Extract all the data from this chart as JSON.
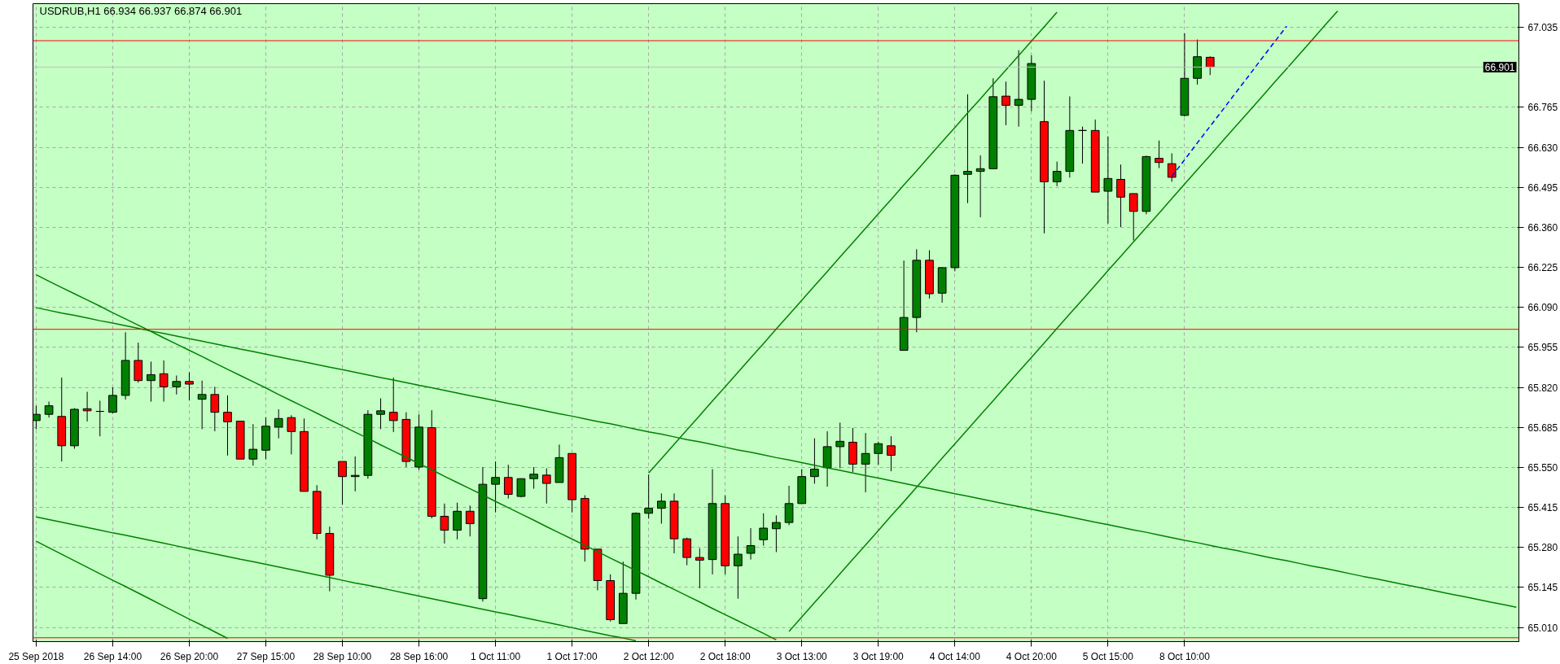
{
  "chart_data": {
    "type": "candlestick",
    "title": "USDRUB,H1  66.934 66.937 66.874 66.901",
    "categories": [
      "25 Sep 2018",
      null,
      null,
      null,
      null,
      null,
      "26 Sep 14:00",
      null,
      null,
      null,
      null,
      null,
      "26 Sep 20:00",
      null,
      null,
      null,
      null,
      null,
      "27 Sep 15:00",
      null,
      null,
      null,
      null,
      null,
      "28 Sep 10:00",
      null,
      null,
      null,
      null,
      null,
      "28 Sep 16:00",
      null,
      null,
      null,
      null,
      null,
      "1 Oct 11:00",
      null,
      null,
      null,
      null,
      null,
      "1 Oct 17:00",
      null,
      null,
      null,
      null,
      null,
      "2 Oct 12:00",
      null,
      null,
      null,
      null,
      null,
      "2 Oct 18:00",
      null,
      null,
      null,
      null,
      null,
      "3 Oct 13:00",
      null,
      null,
      null,
      null,
      null,
      "3 Oct 19:00",
      null,
      null,
      null,
      null,
      null,
      "4 Oct 14:00",
      null,
      null,
      null,
      null,
      null,
      "4 Oct 20:00",
      null,
      null,
      null,
      null,
      null,
      "5 Oct 15:00",
      null,
      null,
      null,
      null,
      null,
      "8 Oct 10:00",
      null,
      null,
      null,
      null,
      null,
      null,
      null,
      null,
      null,
      null,
      null,
      null,
      null,
      null,
      null,
      null,
      null,
      null,
      null,
      null,
      null,
      null,
      null,
      null,
      null,
      null
    ],
    "ohlc": [
      [
        65.708,
        65.758,
        65.679,
        65.729
      ],
      [
        65.729,
        65.772,
        65.718,
        65.758
      ],
      [
        65.722,
        65.853,
        65.57,
        65.623
      ],
      [
        65.623,
        65.75,
        65.613,
        65.746
      ],
      [
        65.748,
        65.805,
        65.705,
        65.741
      ],
      [
        65.739,
        65.775,
        65.655,
        65.739
      ],
      [
        65.736,
        65.82,
        65.732,
        65.793
      ],
      [
        65.793,
        66.006,
        65.779,
        65.911
      ],
      [
        65.911,
        65.971,
        65.836,
        65.843
      ],
      [
        65.843,
        65.907,
        65.772,
        65.863
      ],
      [
        65.866,
        65.911,
        65.772,
        65.822
      ],
      [
        65.822,
        65.86,
        65.796,
        65.84
      ],
      [
        65.84,
        65.871,
        65.776,
        65.831
      ],
      [
        65.78,
        65.843,
        65.679,
        65.796
      ],
      [
        65.796,
        65.822,
        65.672,
        65.736
      ],
      [
        65.736,
        65.793,
        65.59,
        65.704
      ],
      [
        65.706,
        65.706,
        65.578,
        65.578
      ],
      [
        65.578,
        65.696,
        65.556,
        65.611
      ],
      [
        65.608,
        65.719,
        65.577,
        65.689
      ],
      [
        65.686,
        65.746,
        65.648,
        65.715
      ],
      [
        65.718,
        65.726,
        65.594,
        65.671
      ],
      [
        65.671,
        65.715,
        65.469,
        65.469
      ],
      [
        65.469,
        65.49,
        65.307,
        65.327
      ],
      [
        65.327,
        65.35,
        65.132,
        65.186
      ],
      [
        65.57,
        65.57,
        65.424,
        65.519
      ],
      [
        65.519,
        65.587,
        65.469,
        65.523
      ],
      [
        65.523,
        65.743,
        65.512,
        65.729
      ],
      [
        65.729,
        65.783,
        65.679,
        65.741
      ],
      [
        65.736,
        65.853,
        65.669,
        65.708
      ],
      [
        65.712,
        65.736,
        65.551,
        65.57
      ],
      [
        65.551,
        65.729,
        65.542,
        65.686
      ],
      [
        65.684,
        65.743,
        65.378,
        65.385
      ],
      [
        65.385,
        65.428,
        65.293,
        65.338
      ],
      [
        65.338,
        65.431,
        65.307,
        65.402
      ],
      [
        65.402,
        65.421,
        65.317,
        65.36
      ],
      [
        65.107,
        65.551,
        65.097,
        65.493
      ],
      [
        65.493,
        65.57,
        65.398,
        65.516
      ],
      [
        65.516,
        65.559,
        65.445,
        65.459
      ],
      [
        65.452,
        65.512,
        65.449,
        65.512
      ],
      [
        65.512,
        65.551,
        65.478,
        65.527
      ],
      [
        65.524,
        65.547,
        65.428,
        65.496
      ],
      [
        65.499,
        65.627,
        65.499,
        65.583
      ],
      [
        65.597,
        65.597,
        65.398,
        65.441
      ],
      [
        65.445,
        65.456,
        65.232,
        65.274
      ],
      [
        65.274,
        65.274,
        65.135,
        65.168
      ],
      [
        65.168,
        65.189,
        65.03,
        65.036
      ],
      [
        65.023,
        65.232,
        65.023,
        65.125
      ],
      [
        65.125,
        65.398,
        65.104,
        65.395
      ],
      [
        65.395,
        65.526,
        65.377,
        65.412
      ],
      [
        65.412,
        65.462,
        65.36,
        65.436
      ],
      [
        65.436,
        65.462,
        65.26,
        65.309
      ],
      [
        65.309,
        65.313,
        65.22,
        65.246
      ],
      [
        65.246,
        65.277,
        65.142,
        65.237
      ],
      [
        65.239,
        65.544,
        65.189,
        65.428
      ],
      [
        65.428,
        65.456,
        65.189,
        65.218
      ],
      [
        65.218,
        65.317,
        65.107,
        65.257
      ],
      [
        65.26,
        65.345,
        65.239,
        65.286
      ],
      [
        65.306,
        65.395,
        65.286,
        65.345
      ],
      [
        65.343,
        65.388,
        65.264,
        65.364
      ],
      [
        65.364,
        65.488,
        65.355,
        65.428
      ],
      [
        65.428,
        65.544,
        65.428,
        65.519
      ],
      [
        65.519,
        65.648,
        65.495,
        65.544
      ],
      [
        65.549,
        65.672,
        65.485,
        65.62
      ],
      [
        65.62,
        65.701,
        65.547,
        65.638
      ],
      [
        65.635,
        65.683,
        65.534,
        65.561
      ],
      [
        65.561,
        65.666,
        65.466,
        65.597
      ],
      [
        65.597,
        65.637,
        65.559,
        65.63
      ],
      [
        65.623,
        65.655,
        65.537,
        65.591
      ],
      [
        65.945,
        66.248,
        65.945,
        66.056
      ],
      [
        66.056,
        66.286,
        66.006,
        66.249
      ],
      [
        66.249,
        66.283,
        66.12,
        66.136
      ],
      [
        66.138,
        66.226,
        66.106,
        66.224
      ],
      [
        66.224,
        66.539,
        66.212,
        66.536
      ],
      [
        66.539,
        66.809,
        66.442,
        66.549
      ],
      [
        66.549,
        66.603,
        66.394,
        66.558
      ],
      [
        66.558,
        66.863,
        66.558,
        66.801
      ],
      [
        66.803,
        66.852,
        66.705,
        66.772
      ],
      [
        66.772,
        66.958,
        66.7,
        66.792
      ],
      [
        66.792,
        66.941,
        66.752,
        66.913
      ],
      [
        66.717,
        66.855,
        66.34,
        66.514
      ],
      [
        66.514,
        66.582,
        66.499,
        66.549
      ],
      [
        66.549,
        66.802,
        66.528,
        66.687
      ],
      [
        66.687,
        66.7,
        66.575,
        66.687
      ],
      [
        66.687,
        66.724,
        66.479,
        66.479
      ],
      [
        66.482,
        66.667,
        66.373,
        66.525
      ],
      [
        66.522,
        66.572,
        66.361,
        66.462
      ],
      [
        66.474,
        66.474,
        66.316,
        66.414
      ],
      [
        66.414,
        66.602,
        66.404,
        66.599
      ],
      [
        66.593,
        66.653,
        66.56,
        66.579
      ],
      [
        66.575,
        66.61,
        66.514,
        66.529
      ],
      [
        66.738,
        67.015,
        66.734,
        66.863
      ],
      [
        66.863,
        66.994,
        66.842,
        66.936
      ],
      [
        66.934,
        66.937,
        66.874,
        66.901
      ],
      null,
      null,
      null,
      null,
      null,
      null,
      null,
      null,
      null,
      null,
      null,
      null,
      null,
      null,
      null,
      null,
      null,
      null,
      null,
      null,
      null,
      null,
      null,
      null
    ],
    "colors": [
      "#008000",
      "#008000",
      "#ff0000",
      "#008000",
      "#ff0000",
      "#000000",
      "#008000",
      "#008000",
      "#ff0000",
      "#008000",
      "#ff0000",
      "#008000",
      "#ff0000",
      "#008000",
      "#ff0000",
      "#ff0000",
      "#ff0000",
      "#008000",
      "#008000",
      "#008000",
      "#ff0000",
      "#ff0000",
      "#ff0000",
      "#ff0000",
      "#ff0000",
      "#008000",
      "#008000",
      "#008000",
      "#ff0000",
      "#ff0000",
      "#008000",
      "#ff0000",
      "#ff0000",
      "#008000",
      "#ff0000",
      "#008000",
      "#008000",
      "#ff0000",
      "#008000",
      "#008000",
      "#ff0000",
      "#008000",
      "#ff0000",
      "#ff0000",
      "#ff0000",
      "#ff0000",
      "#008000",
      "#008000",
      "#008000",
      "#008000",
      "#ff0000",
      "#ff0000",
      "#ff0000",
      "#008000",
      "#ff0000",
      "#008000",
      "#008000",
      "#008000",
      "#008000",
      "#008000",
      "#008000",
      "#008000",
      "#008000",
      "#008000",
      "#ff0000",
      "#008000",
      "#008000",
      "#ff0000",
      "#008000",
      "#008000",
      "#ff0000",
      "#008000",
      "#008000",
      "#008000",
      "#008000",
      "#008000",
      "#ff0000",
      "#008000",
      "#008000",
      "#ff0000",
      "#008000",
      "#008000",
      "#000000",
      "#ff0000",
      "#008000",
      "#ff0000",
      "#ff0000",
      "#008000",
      "#ff0000",
      "#ff0000",
      "#008000",
      "#008000",
      "#ff0000",
      null,
      null,
      null,
      null,
      null,
      null,
      null,
      null,
      null,
      null,
      null,
      null,
      null,
      null,
      null,
      null,
      null,
      null,
      null,
      null,
      null,
      null,
      null,
      null
    ],
    "series": [
      {
        "type": "line",
        "color": "#008000",
        "line_style": "solid",
        "values": [
          null,
          null,
          null,
          null,
          null,
          null,
          null,
          null,
          null,
          null,
          null,
          null,
          null,
          null,
          null,
          null,
          null,
          null,
          null,
          null,
          null,
          null,
          null,
          null,
          null,
          null,
          null,
          null,
          null,
          null,
          null,
          null,
          null,
          null,
          null,
          null,
          null,
          null,
          null,
          null,
          null,
          null,
          null,
          null,
          null,
          null,
          null,
          null,
          65.531,
          65.579,
          65.628,
          65.677,
          65.725,
          65.774,
          65.822,
          65.871,
          65.92,
          65.968,
          66.017,
          66.065,
          66.114,
          66.163,
          66.211,
          66.26,
          66.308,
          66.357,
          66.406,
          66.454,
          66.503,
          66.551,
          66.6,
          66.649,
          66.697,
          66.746,
          66.794,
          66.843,
          66.891,
          66.94,
          66.989,
          67.037,
          67.086,
          null,
          null,
          null,
          null,
          null,
          null,
          null,
          null,
          null,
          null,
          null,
          null,
          null,
          null,
          null,
          null,
          null,
          null,
          null,
          null,
          null,
          null,
          null,
          null,
          null,
          null,
          null,
          null,
          null,
          null,
          null,
          null,
          null,
          null,
          null,
          null
        ]
      },
      {
        "type": "line",
        "color": "#008000",
        "line_style": "solid",
        "values": [
          null,
          null,
          null,
          null,
          null,
          null,
          null,
          null,
          null,
          null,
          null,
          null,
          null,
          null,
          null,
          null,
          null,
          null,
          null,
          null,
          null,
          null,
          null,
          null,
          null,
          null,
          null,
          null,
          null,
          null,
          null,
          null,
          null,
          null,
          null,
          null,
          null,
          null,
          null,
          null,
          null,
          null,
          null,
          null,
          null,
          null,
          null,
          null,
          null,
          null,
          null,
          null,
          null,
          null,
          null,
          null,
          null,
          null,
          null,
          64.996,
          65.045,
          65.094,
          65.142,
          65.191,
          65.24,
          65.288,
          65.337,
          65.386,
          65.434,
          65.483,
          65.532,
          65.581,
          65.629,
          65.678,
          65.727,
          65.775,
          65.824,
          65.873,
          65.921,
          65.97,
          66.019,
          66.068,
          66.116,
          66.165,
          66.214,
          66.262,
          66.311,
          66.36,
          66.408,
          66.457,
          66.506,
          66.555,
          66.603,
          66.652,
          66.701,
          66.749,
          66.798,
          66.847,
          66.895,
          66.944,
          66.993,
          67.042,
          67.09,
          null,
          null,
          null,
          null,
          null,
          null,
          null,
          null,
          null,
          null,
          null,
          null,
          null,
          null
        ]
      },
      {
        "type": "line",
        "color": "#0000ff",
        "line_style": "dashed",
        "values": [
          null,
          null,
          null,
          null,
          null,
          null,
          null,
          null,
          null,
          null,
          null,
          null,
          null,
          null,
          null,
          null,
          null,
          null,
          null,
          null,
          null,
          null,
          null,
          null,
          null,
          null,
          null,
          null,
          null,
          null,
          null,
          null,
          null,
          null,
          null,
          null,
          null,
          null,
          null,
          null,
          null,
          null,
          null,
          null,
          null,
          null,
          null,
          null,
          null,
          null,
          null,
          null,
          null,
          null,
          null,
          null,
          null,
          null,
          null,
          null,
          null,
          null,
          null,
          null,
          null,
          null,
          null,
          null,
          null,
          null,
          null,
          null,
          null,
          null,
          null,
          null,
          null,
          null,
          null,
          null,
          null,
          null,
          null,
          null,
          null,
          null,
          null,
          null,
          null,
          66.532,
          66.588,
          66.645,
          66.701,
          66.757,
          66.814,
          66.87,
          66.927,
          66.983,
          67.039,
          null,
          null,
          null,
          null,
          null,
          null,
          null,
          null,
          null,
          null,
          null,
          null,
          null,
          null,
          null,
          null,
          null,
          null
        ]
      },
      {
        "type": "line",
        "color": "#008000",
        "line_style": "solid",
        "values": [
          66.089,
          66.08,
          66.071,
          66.063,
          66.054,
          66.045,
          66.037,
          66.028,
          66.019,
          66.01,
          66.002,
          65.993,
          65.984,
          65.976,
          65.967,
          65.958,
          65.949,
          65.941,
          65.932,
          65.923,
          65.914,
          65.906,
          65.897,
          65.888,
          65.88,
          65.871,
          65.862,
          65.853,
          65.845,
          65.836,
          65.827,
          65.819,
          65.81,
          65.801,
          65.792,
          65.784,
          65.775,
          65.766,
          65.758,
          65.749,
          65.74,
          65.731,
          65.723,
          65.714,
          65.705,
          65.697,
          65.688,
          65.679,
          65.67,
          65.662,
          65.653,
          65.644,
          65.636,
          65.627,
          65.618,
          65.609,
          65.601,
          65.592,
          65.583,
          65.575,
          65.566,
          65.557,
          65.548,
          65.54,
          65.531,
          65.522,
          65.514,
          65.505,
          65.496,
          65.487,
          65.479,
          65.47,
          65.461,
          65.453,
          65.444,
          65.435,
          65.426,
          65.418,
          65.409,
          65.4,
          65.392,
          65.383,
          65.374,
          65.365,
          65.357,
          65.348,
          65.339,
          65.331,
          65.322,
          65.313,
          65.304,
          65.296,
          65.287,
          65.278,
          65.27,
          65.261,
          65.252,
          65.243,
          65.235,
          65.226,
          65.217,
          65.209,
          65.2,
          65.191,
          65.182,
          65.174,
          65.165,
          65.156,
          65.148,
          65.139,
          65.13,
          65.121,
          65.113,
          65.104,
          65.095,
          65.087,
          65.078
        ]
      },
      {
        "type": "line",
        "color": "#008000",
        "line_style": "solid",
        "values": [
          66.2,
          66.178,
          66.157,
          66.136,
          66.115,
          66.094,
          66.072,
          66.051,
          66.03,
          66.009,
          65.987,
          65.966,
          65.945,
          65.924,
          65.902,
          65.881,
          65.86,
          65.839,
          65.818,
          65.796,
          65.775,
          65.754,
          65.733,
          65.711,
          65.69,
          65.669,
          65.648,
          65.626,
          65.605,
          65.584,
          65.563,
          65.542,
          65.52,
          65.499,
          65.478,
          65.457,
          65.435,
          65.414,
          65.393,
          65.372,
          65.35,
          65.329,
          65.308,
          65.287,
          65.266,
          65.244,
          65.223,
          65.202,
          65.181,
          65.159,
          65.138,
          65.117,
          65.096,
          65.074,
          65.053,
          65.032,
          65.011,
          64.99,
          64.968,
          null,
          null,
          null,
          null,
          null,
          null,
          null,
          null,
          null,
          null,
          null,
          null,
          null,
          null,
          null,
          null,
          null,
          null,
          null,
          null,
          null,
          null,
          null,
          null,
          null,
          null,
          null,
          null,
          null,
          null,
          null,
          null,
          null,
          null,
          null,
          null,
          null,
          null,
          null,
          null,
          null,
          null,
          null,
          null,
          null,
          null,
          null,
          null,
          null,
          null,
          null,
          null,
          null,
          null,
          null,
          null,
          null,
          null
        ]
      },
      {
        "type": "line",
        "color": "#008000",
        "line_style": "solid",
        "values": [
          65.383,
          65.374,
          65.365,
          65.356,
          65.347,
          65.338,
          65.329,
          65.321,
          65.312,
          65.303,
          65.294,
          65.285,
          65.276,
          65.267,
          65.258,
          65.249,
          65.24,
          65.232,
          65.223,
          65.214,
          65.205,
          65.196,
          65.187,
          65.178,
          65.169,
          65.16,
          65.152,
          65.143,
          65.134,
          65.125,
          65.116,
          65.107,
          65.098,
          65.089,
          65.08,
          65.071,
          65.062,
          65.054,
          65.045,
          65.036,
          65.027,
          65.018,
          65.009,
          65.0,
          64.991,
          64.982,
          64.974,
          64.965,
          null,
          null,
          null,
          null,
          null,
          null,
          null,
          null,
          null,
          null,
          null,
          null,
          null,
          null,
          null,
          null,
          null,
          null,
          null,
          null,
          null,
          null,
          null,
          null,
          null,
          null,
          null,
          null,
          null,
          null,
          null,
          null,
          null,
          null,
          null,
          null,
          null,
          null,
          null,
          null,
          null,
          null,
          null,
          null,
          null,
          null,
          null,
          null,
          null,
          null,
          null,
          null,
          null,
          null,
          null,
          null,
          null,
          null,
          null,
          null,
          null,
          null,
          null,
          null,
          null,
          null,
          null,
          null,
          null
        ]
      },
      {
        "type": "line",
        "color": "#008000",
        "line_style": "solid",
        "values": [
          65.301,
          65.279,
          65.257,
          65.235,
          65.213,
          65.191,
          65.169,
          65.148,
          65.126,
          65.104,
          65.082,
          65.06,
          65.038,
          65.017,
          64.995,
          64.973,
          null,
          null,
          null,
          null,
          null,
          null,
          null,
          null,
          null,
          null,
          null,
          null,
          null,
          null,
          null,
          null,
          null,
          null,
          null,
          null,
          null,
          null,
          null,
          null,
          null,
          null,
          null,
          null,
          null,
          null,
          null,
          null,
          null,
          null,
          null,
          null,
          null,
          null,
          null,
          null,
          null,
          null,
          null,
          null,
          null,
          null,
          null,
          null,
          null,
          null,
          null,
          null,
          null,
          null,
          null,
          null,
          null,
          null,
          null,
          null,
          null,
          null,
          null,
          null,
          null,
          null,
          null,
          null,
          null,
          null,
          null,
          null,
          null,
          null,
          null,
          null,
          null,
          null,
          null,
          null,
          null,
          null,
          null,
          null,
          null,
          null,
          null,
          null,
          null,
          null,
          null,
          null,
          null,
          null,
          null,
          null,
          null,
          null,
          null,
          null,
          null
        ]
      }
    ],
    "ylim": [
      64.962,
      67.115
    ],
    "yticks": [
      {
        "value": 65.01,
        "label": "65.010"
      },
      {
        "value": 65.145,
        "label": "65.145"
      },
      {
        "value": 65.28,
        "label": "65.280"
      },
      {
        "value": 65.415,
        "label": "65.415"
      },
      {
        "value": 65.55,
        "label": "65.550"
      },
      {
        "value": 65.685,
        "label": "65.685"
      },
      {
        "value": 65.82,
        "label": "65.820"
      },
      {
        "value": 65.955,
        "label": "65.955"
      },
      {
        "value": 66.09,
        "label": "66.090"
      },
      {
        "value": 66.225,
        "label": "66.225"
      },
      {
        "value": 66.36,
        "label": "66.360"
      },
      {
        "value": 66.495,
        "label": "66.495"
      },
      {
        "value": 66.63,
        "label": "66.630"
      },
      {
        "value": 66.765,
        "label": "66.765"
      },
      {
        "value": 67.035,
        "label": "67.035"
      }
    ],
    "grid": true,
    "ref_lines": [
      {
        "axis": "y",
        "value": 66.99,
        "color": "#ff0000"
      },
      {
        "axis": "y",
        "value": 66.016,
        "color": "#ff0000"
      },
      {
        "axis": "y",
        "value": 64.975,
        "color": "#ff0000"
      },
      {
        "axis": "y",
        "value": 66.901,
        "label": "66.901",
        "color": "#c0c0c0"
      }
    ]
  }
}
